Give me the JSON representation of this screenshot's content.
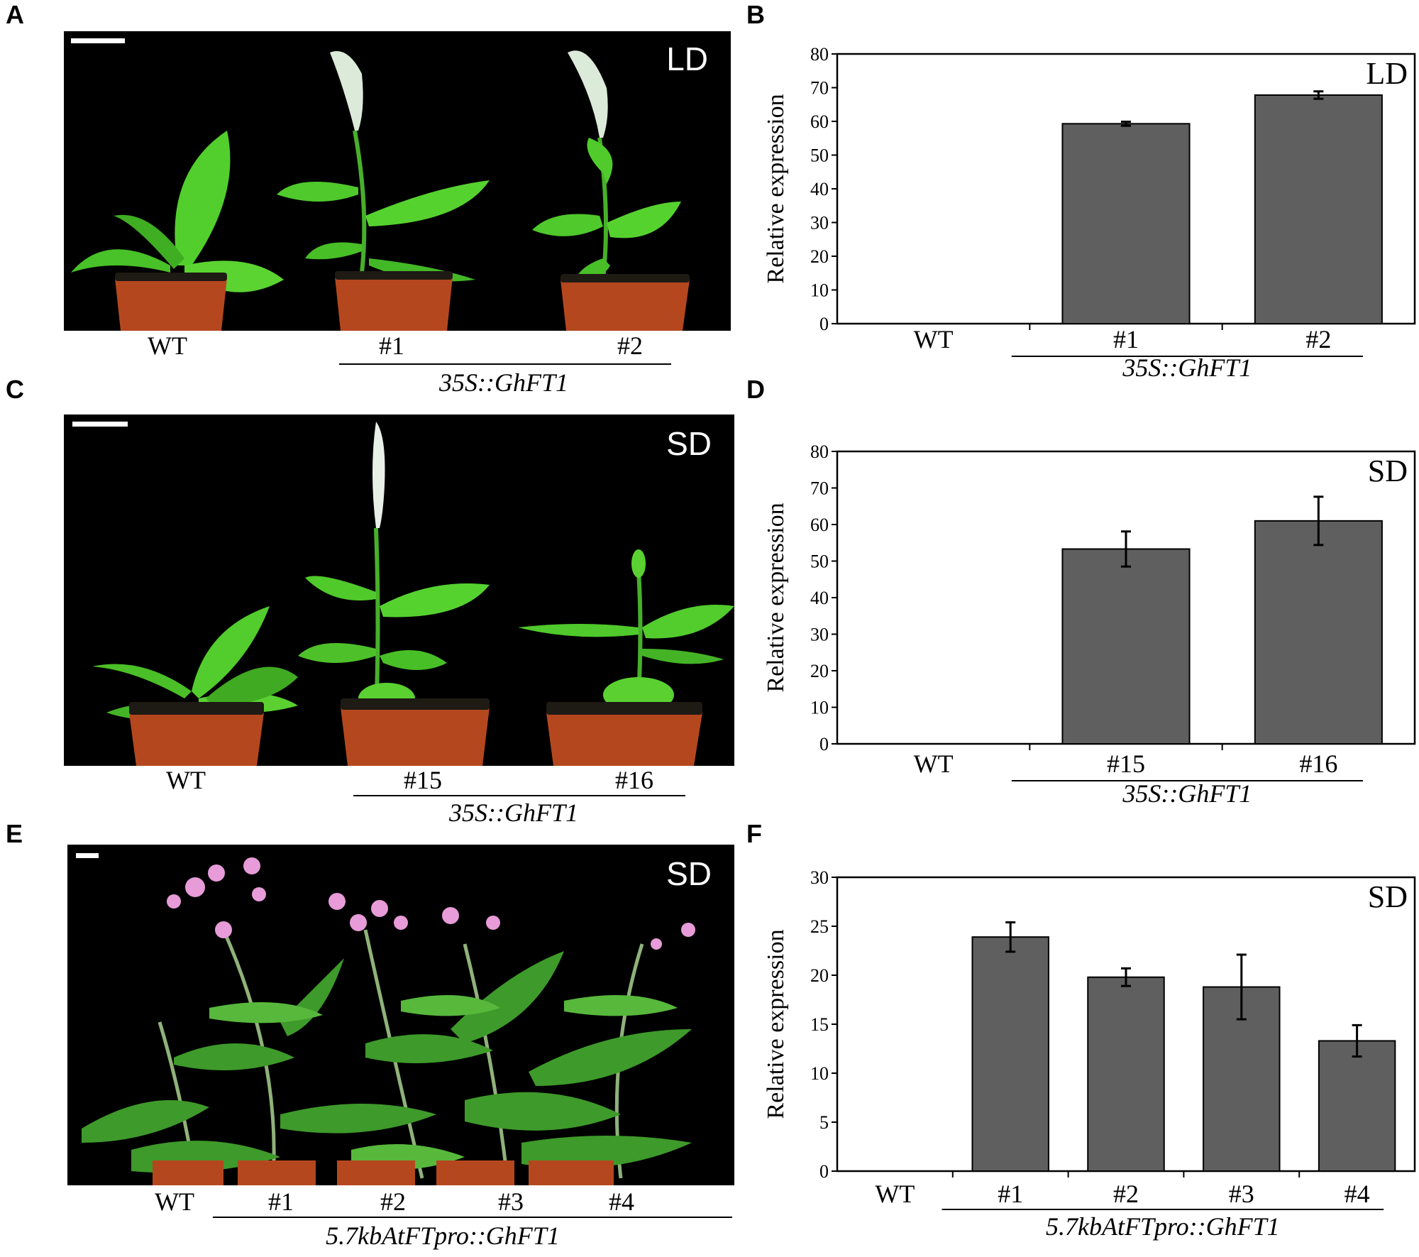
{
  "panels": {
    "A": {
      "letter": "A",
      "condition": "LD",
      "plants": [
        "WT",
        "#1",
        "#2"
      ],
      "genotype": "35S::GhFT1"
    },
    "B": {
      "letter": "B"
    },
    "C": {
      "letter": "C",
      "condition": "SD",
      "plants": [
        "WT",
        "#15",
        "#16"
      ],
      "genotype": "35S::GhFT1"
    },
    "D": {
      "letter": "D"
    },
    "E": {
      "letter": "E",
      "condition": "SD",
      "plants": [
        "WT",
        "#1",
        "#2",
        "#3",
        "#4"
      ],
      "genotype": "5.7kbAtFTpro::GhFT1"
    },
    "F": {
      "letter": "F"
    }
  },
  "chart_data": [
    {
      "type": "bar",
      "panel": "B",
      "title": "LD",
      "ylabel": "Relative expression",
      "xlabel": "",
      "categories": [
        "WT",
        "#1",
        "#2"
      ],
      "values": [
        0,
        59.3,
        67.8
      ],
      "errors": [
        0,
        0.6,
        1.1
      ],
      "ylim": [
        0,
        80
      ],
      "yticks": [
        0,
        10,
        20,
        30,
        40,
        50,
        60,
        70,
        80
      ],
      "group_label": "35S::GhFT1",
      "bar_color": "#5f5f5f",
      "grid": false
    },
    {
      "type": "bar",
      "panel": "D",
      "title": "SD",
      "ylabel": "Relative expression",
      "xlabel": "",
      "categories": [
        "WT",
        "#15",
        "#16"
      ],
      "values": [
        0,
        53.3,
        61.0
      ],
      "errors": [
        0,
        4.8,
        6.6
      ],
      "ylim": [
        0,
        80
      ],
      "yticks": [
        0,
        10,
        20,
        30,
        40,
        50,
        60,
        70,
        80
      ],
      "group_label": "35S::GhFT1",
      "bar_color": "#5f5f5f",
      "grid": false
    },
    {
      "type": "bar",
      "panel": "F",
      "title": "SD",
      "ylabel": "Relative expression",
      "xlabel": "",
      "categories": [
        "WT",
        "#1",
        "#2",
        "#3",
        "#4"
      ],
      "values": [
        0,
        23.9,
        19.8,
        18.8,
        13.3
      ],
      "errors": [
        0,
        1.5,
        0.9,
        3.3,
        1.6
      ],
      "ylim": [
        0,
        30
      ],
      "yticks": [
        0,
        5,
        10,
        15,
        20,
        25,
        30
      ],
      "group_label": "5.7kbAtFTpro::GhFT1",
      "bar_color": "#5f5f5f",
      "grid": false
    }
  ],
  "colors": {
    "leaf": "#4fcf2a",
    "leaf_dark": "#2f8f1e",
    "pot": "#b5471f",
    "soil": "#1e1a14",
    "flower_white": "#e8f0e8",
    "flower_pink": "#e79bd8",
    "bar": "#5f5f5f"
  }
}
